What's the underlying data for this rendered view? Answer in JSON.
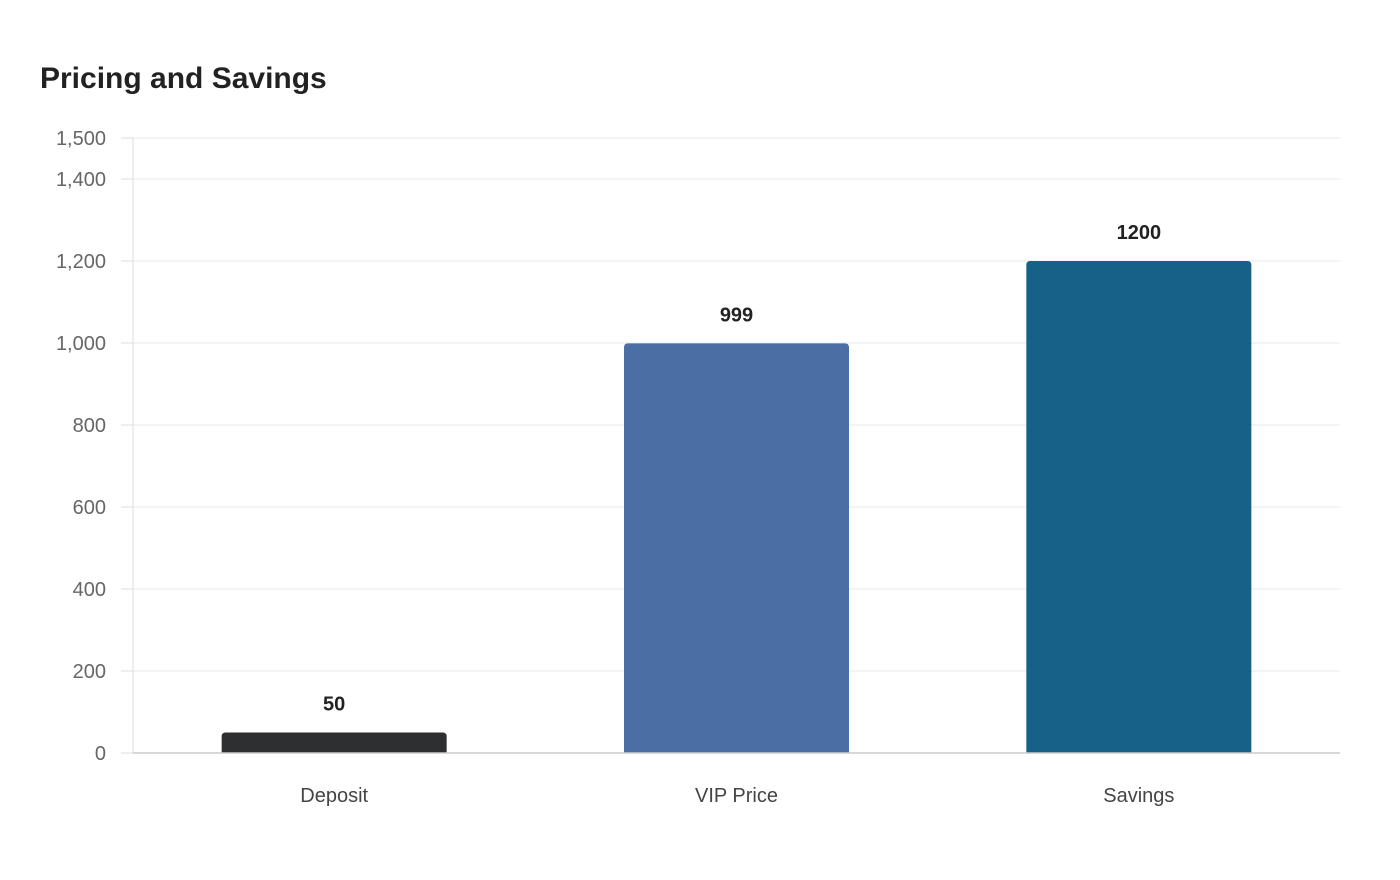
{
  "chart_data": {
    "type": "bar",
    "title": "Pricing and Savings",
    "categories": [
      "Deposit",
      "VIP Price",
      "Savings"
    ],
    "values": [
      50,
      999,
      1200
    ],
    "data_labels": [
      "50",
      "999",
      "1200"
    ],
    "colors": [
      "#2d2f31",
      "#4a6fa5",
      "#176087"
    ],
    "xlabel": "",
    "ylabel": "",
    "ylim": [
      0,
      1500
    ],
    "yticks": [
      0,
      200,
      400,
      600,
      800,
      1000,
      1200,
      1400,
      1500
    ],
    "ytick_labels": [
      "0",
      "200",
      "400",
      "600",
      "800",
      "1,000",
      "1,200",
      "1,400",
      "1,500"
    ],
    "grid": true,
    "legend": "none"
  }
}
